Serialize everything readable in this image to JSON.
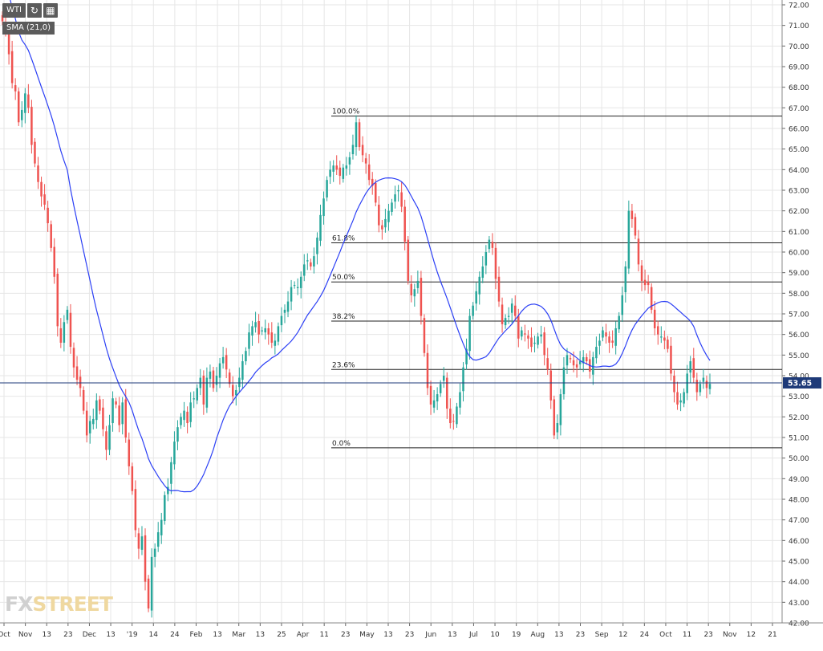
{
  "toolbar": {
    "symbol": "WTI",
    "refresh_icon": "refresh-icon",
    "calendar_icon": "calendar-icon"
  },
  "indicator": {
    "label": "SMA (21,0)"
  },
  "watermark": {
    "fx": "FX",
    "street": "STREET"
  },
  "colors": {
    "up_candle": "#26a69a",
    "down_candle": "#ef5350",
    "sma": "#2b3ff5",
    "fib_line": "#222222",
    "price_line": "#1e3a78",
    "price_tag": "#1e3a78",
    "grid": "#e6e6e6"
  },
  "chart_data": {
    "type": "candlestick",
    "symbol": "WTI",
    "ylim": [
      42,
      72
    ],
    "y_ticks": [
      "42.00",
      "43.00",
      "44.00",
      "45.00",
      "46.00",
      "47.00",
      "48.00",
      "49.00",
      "50.00",
      "51.00",
      "52.00",
      "53.00",
      "54.00",
      "55.00",
      "56.00",
      "57.00",
      "58.00",
      "59.00",
      "60.00",
      "61.00",
      "62.00",
      "63.00",
      "64.00",
      "65.00",
      "66.00",
      "67.00",
      "68.00",
      "69.00",
      "70.00",
      "71.00",
      "72.00"
    ],
    "x_ticks": [
      "Oct",
      "Nov",
      "13",
      "23",
      "Dec",
      "13",
      "'19",
      "14",
      "24",
      "Feb",
      "13",
      "Mar",
      "13",
      "25",
      "Apr",
      "11",
      "23",
      "May",
      "13",
      "23",
      "Jun",
      "13",
      "Jul",
      "10",
      "19",
      "Aug",
      "13",
      "23",
      "Sep",
      "12",
      "24",
      "Oct",
      "11",
      "23",
      "Nov",
      "12",
      "21"
    ],
    "current_price": {
      "value": 53.65,
      "label": "53.65"
    },
    "fibonacci": [
      {
        "label": "100.0%",
        "value": 66.6
      },
      {
        "label": "61.8%",
        "value": 60.45
      },
      {
        "label": "50.0%",
        "value": 58.55
      },
      {
        "label": "38.2%",
        "value": 56.65
      },
      {
        "label": "23.6%",
        "value": 54.3
      },
      {
        "label": "0.0%",
        "value": 50.5
      }
    ],
    "closes": [
      71.2,
      70.8,
      69.6,
      68.2,
      67.8,
      66.3,
      66.9,
      67.7,
      67.0,
      65.2,
      64.3,
      63.4,
      62.7,
      62.3,
      61.4,
      60.2,
      58.8,
      56.4,
      55.6,
      56.6,
      57.2,
      55.4,
      54.4,
      53.8,
      53.4,
      52.3,
      51.1,
      51.8,
      51.9,
      52.8,
      52.3,
      51.4,
      50.4,
      51.6,
      52.9,
      52.6,
      51.6,
      52.7,
      51.0,
      49.6,
      48.4,
      46.5,
      45.6,
      46.2,
      44.0,
      42.7,
      45.2,
      45.6,
      46.4,
      47.0,
      48.2,
      48.6,
      49.8,
      50.8,
      51.5,
      52.0,
      52.3,
      51.7,
      52.7,
      52.9,
      53.4,
      53.9,
      52.6,
      53.9,
      54.2,
      53.4,
      54.0,
      54.6,
      54.9,
      54.3,
      53.6,
      53.0,
      53.3,
      53.9,
      54.7,
      55.2,
      56.1,
      56.4,
      56.6,
      56.0,
      56.2,
      56.3,
      56.0,
      55.6,
      55.7,
      56.4,
      56.9,
      57.2,
      57.6,
      58.3,
      58.4,
      58.3,
      58.8,
      59.4,
      59.6,
      59.3,
      59.8,
      60.7,
      61.8,
      62.6,
      63.5,
      64.0,
      64.2,
      64.0,
      63.7,
      64.1,
      64.2,
      64.6,
      65.2,
      66.3,
      65.1,
      64.7,
      64.3,
      63.5,
      63.2,
      62.4,
      61.3,
      61.1,
      61.6,
      62.0,
      62.4,
      62.8,
      63.0,
      62.2,
      60.5,
      58.6,
      57.9,
      58.2,
      58.6,
      56.9,
      55.1,
      53.4,
      52.6,
      52.8,
      53.1,
      53.6,
      54.0,
      52.4,
      51.7,
      51.8,
      52.5,
      53.2,
      54.4,
      55.3,
      56.9,
      57.4,
      58.1,
      58.8,
      59.3,
      60.0,
      60.6,
      60.2,
      58.7,
      57.6,
      56.5,
      56.8,
      56.9,
      57.5,
      56.9,
      55.8,
      56.2,
      56.0,
      55.8,
      55.4,
      55.6,
      55.9,
      56.0,
      55.0,
      54.3,
      52.8,
      51.1,
      51.7,
      53.1,
      54.4,
      55.0,
      54.8,
      54.5,
      54.4,
      54.7,
      54.9,
      54.7,
      54.2,
      54.9,
      55.4,
      55.7,
      56.2,
      55.9,
      55.6,
      55.6,
      56.3,
      56.9,
      57.9,
      59.3,
      62.0,
      61.6,
      60.8,
      59.4,
      58.6,
      58.4,
      58.4,
      57.2,
      56.3,
      56.0,
      55.9,
      55.7,
      55.3,
      54.1,
      53.2,
      52.6,
      52.8,
      53.2,
      54.1,
      54.7,
      53.9,
      53.2,
      53.6,
      53.9,
      53.4,
      53.6
    ]
  }
}
